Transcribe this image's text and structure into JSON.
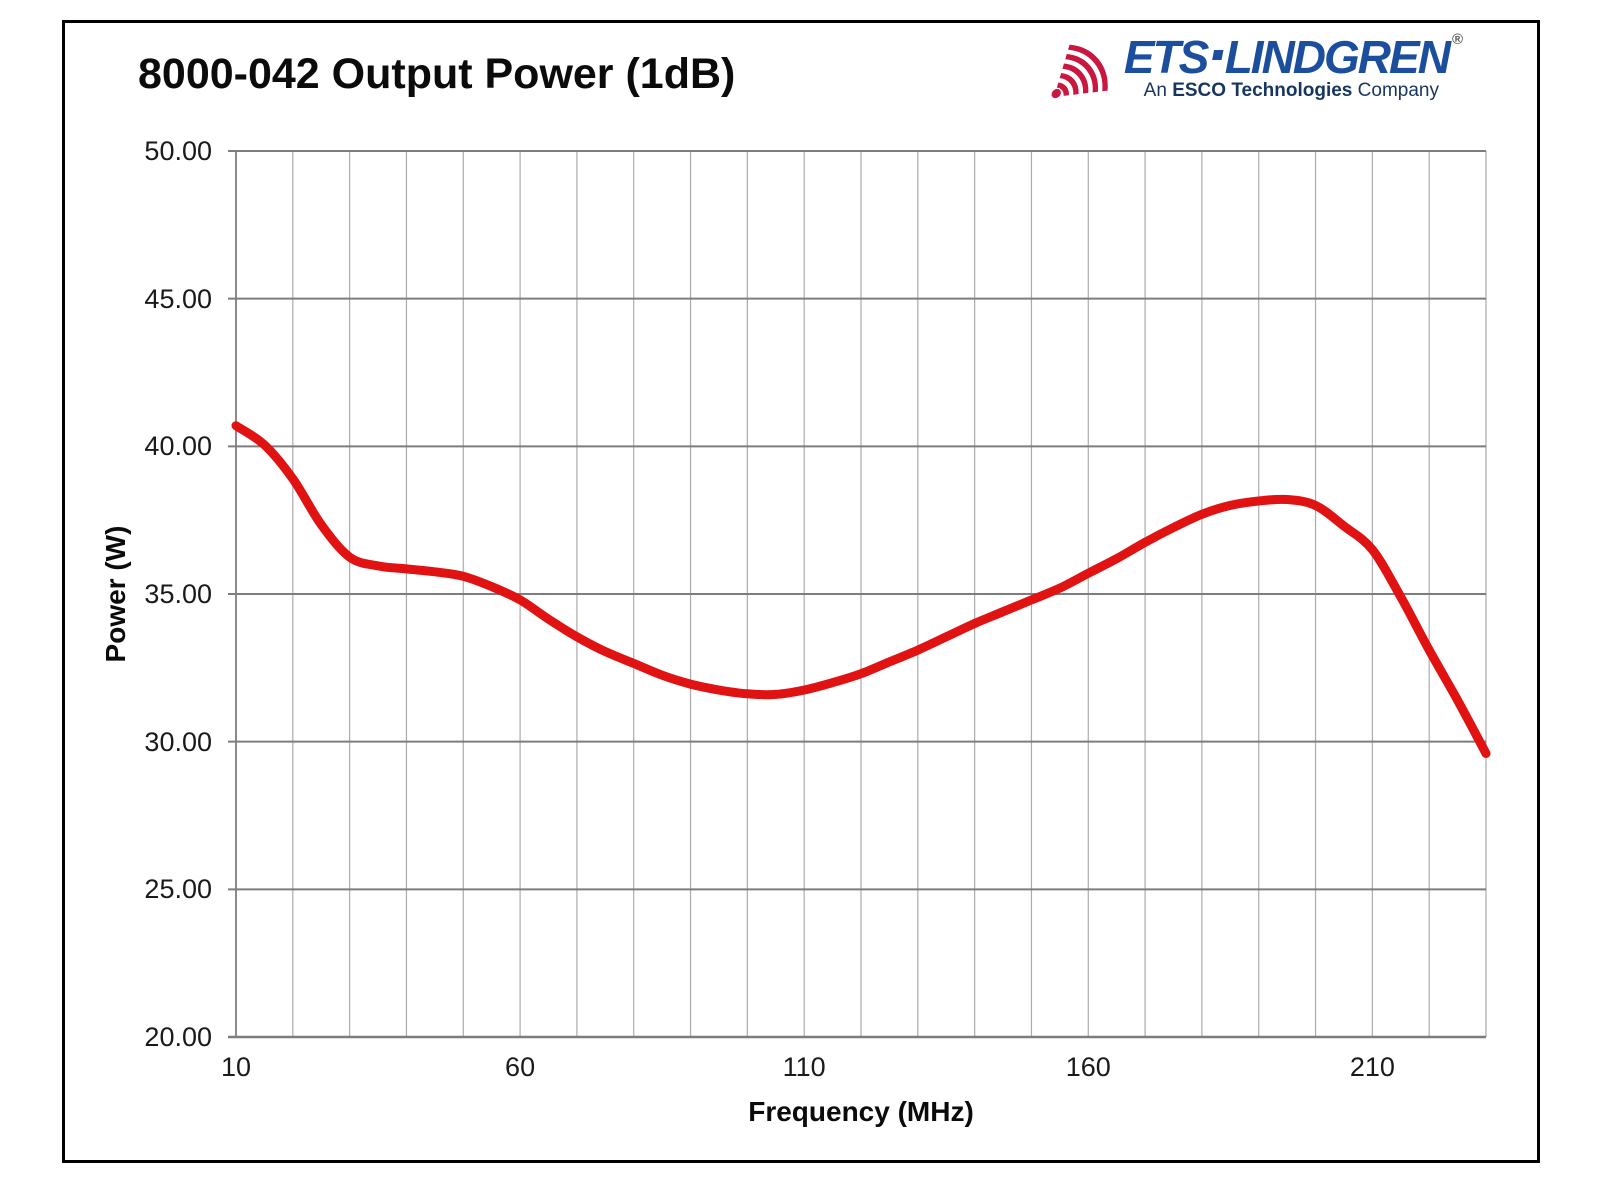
{
  "header": {
    "title": "8000-042 Output Power (1dB)"
  },
  "logo": {
    "brand_ets": "ETS",
    "brand_sep": "·",
    "brand_lindgren": "LINDGREN",
    "registered_mark": "®",
    "tagline_an": "An",
    "tagline_bold": "ESCO Technologies",
    "tagline_rest": "Company",
    "brand_color": "#1b4f9e",
    "tagline_color": "#17355f",
    "arc_color": "#c9173f"
  },
  "chart_data": {
    "type": "line",
    "title": "8000-042 Output Power (1dB)",
    "xlabel": "Frequency (MHz)",
    "ylabel": "Power (W)",
    "xlim": [
      10,
      230
    ],
    "ylim": [
      20,
      50
    ],
    "x_ticks": [
      10,
      60,
      110,
      160,
      210
    ],
    "y_ticks": [
      50,
      45,
      40,
      35,
      30,
      25,
      20
    ],
    "y_tick_decimals": 2,
    "x_grid_step": 10,
    "y_grid_step": 5,
    "grid": "on",
    "legend": "none",
    "colors": {
      "curve": "#e11212",
      "grid_minor": "#ababab",
      "grid_major": "#7d7d7d",
      "axis": "#6e6e6e"
    },
    "series": [
      {
        "name": "Output Power (1dB)",
        "x": [
          10,
          15,
          20,
          25,
          30,
          35,
          40,
          45,
          50,
          55,
          60,
          65,
          70,
          75,
          80,
          85,
          90,
          95,
          100,
          105,
          110,
          115,
          120,
          125,
          130,
          135,
          140,
          145,
          150,
          155,
          160,
          165,
          170,
          175,
          180,
          185,
          190,
          195,
          200,
          205,
          210,
          215,
          220,
          225,
          230
        ],
        "y": [
          40.7,
          40.05,
          38.9,
          37.35,
          36.25,
          35.95,
          35.85,
          35.75,
          35.6,
          35.25,
          34.8,
          34.15,
          33.55,
          33.05,
          32.65,
          32.25,
          31.95,
          31.75,
          31.62,
          31.6,
          31.75,
          32.0,
          32.3,
          32.7,
          33.1,
          33.55,
          34.0,
          34.4,
          34.8,
          35.2,
          35.7,
          36.2,
          36.75,
          37.25,
          37.7,
          38.0,
          38.15,
          38.2,
          38.0,
          37.3,
          36.5,
          34.9,
          33.1,
          31.4,
          29.6
        ]
      }
    ]
  }
}
